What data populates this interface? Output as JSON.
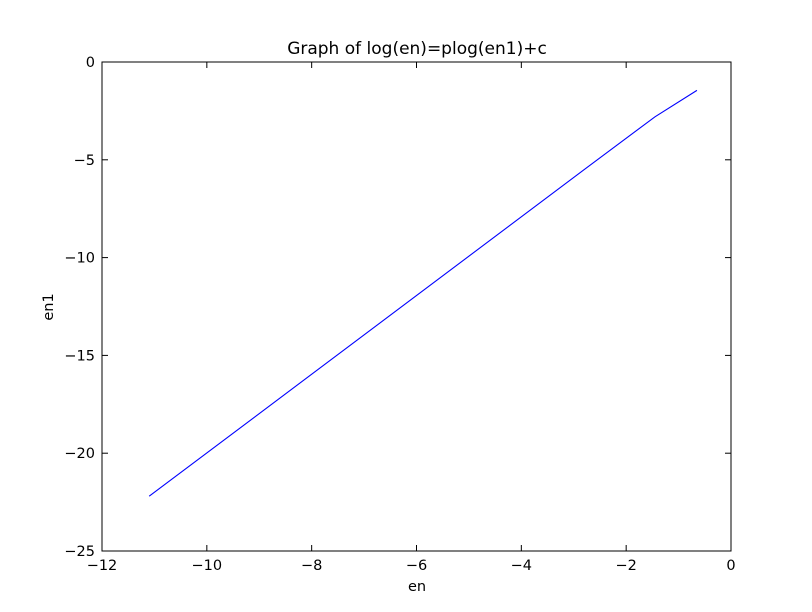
{
  "chart_data": {
    "type": "line",
    "title": "Graph of log(en)=plog(en1)+c",
    "xlabel": "en",
    "ylabel": "en1",
    "xlim": [
      -12,
      0
    ],
    "ylim": [
      -25,
      0
    ],
    "grid": false,
    "xticks": [
      -12,
      -10,
      -8,
      -6,
      -4,
      -2,
      0
    ],
    "yticks": [
      -25,
      -20,
      -15,
      -10,
      -5,
      0
    ],
    "xtick_labels": [
      "−12",
      "−10",
      "−8",
      "−6",
      "−4",
      "−2",
      "0"
    ],
    "ytick_labels": [
      "−25",
      "−20",
      "−15",
      "−10",
      "−5",
      "0"
    ],
    "series": [
      {
        "color": "#0000ff",
        "x": [
          -11.1,
          -2.8,
          -1.45,
          -0.65
        ],
        "y": [
          -22.2,
          -5.5,
          -2.8,
          -1.45
        ]
      }
    ]
  }
}
